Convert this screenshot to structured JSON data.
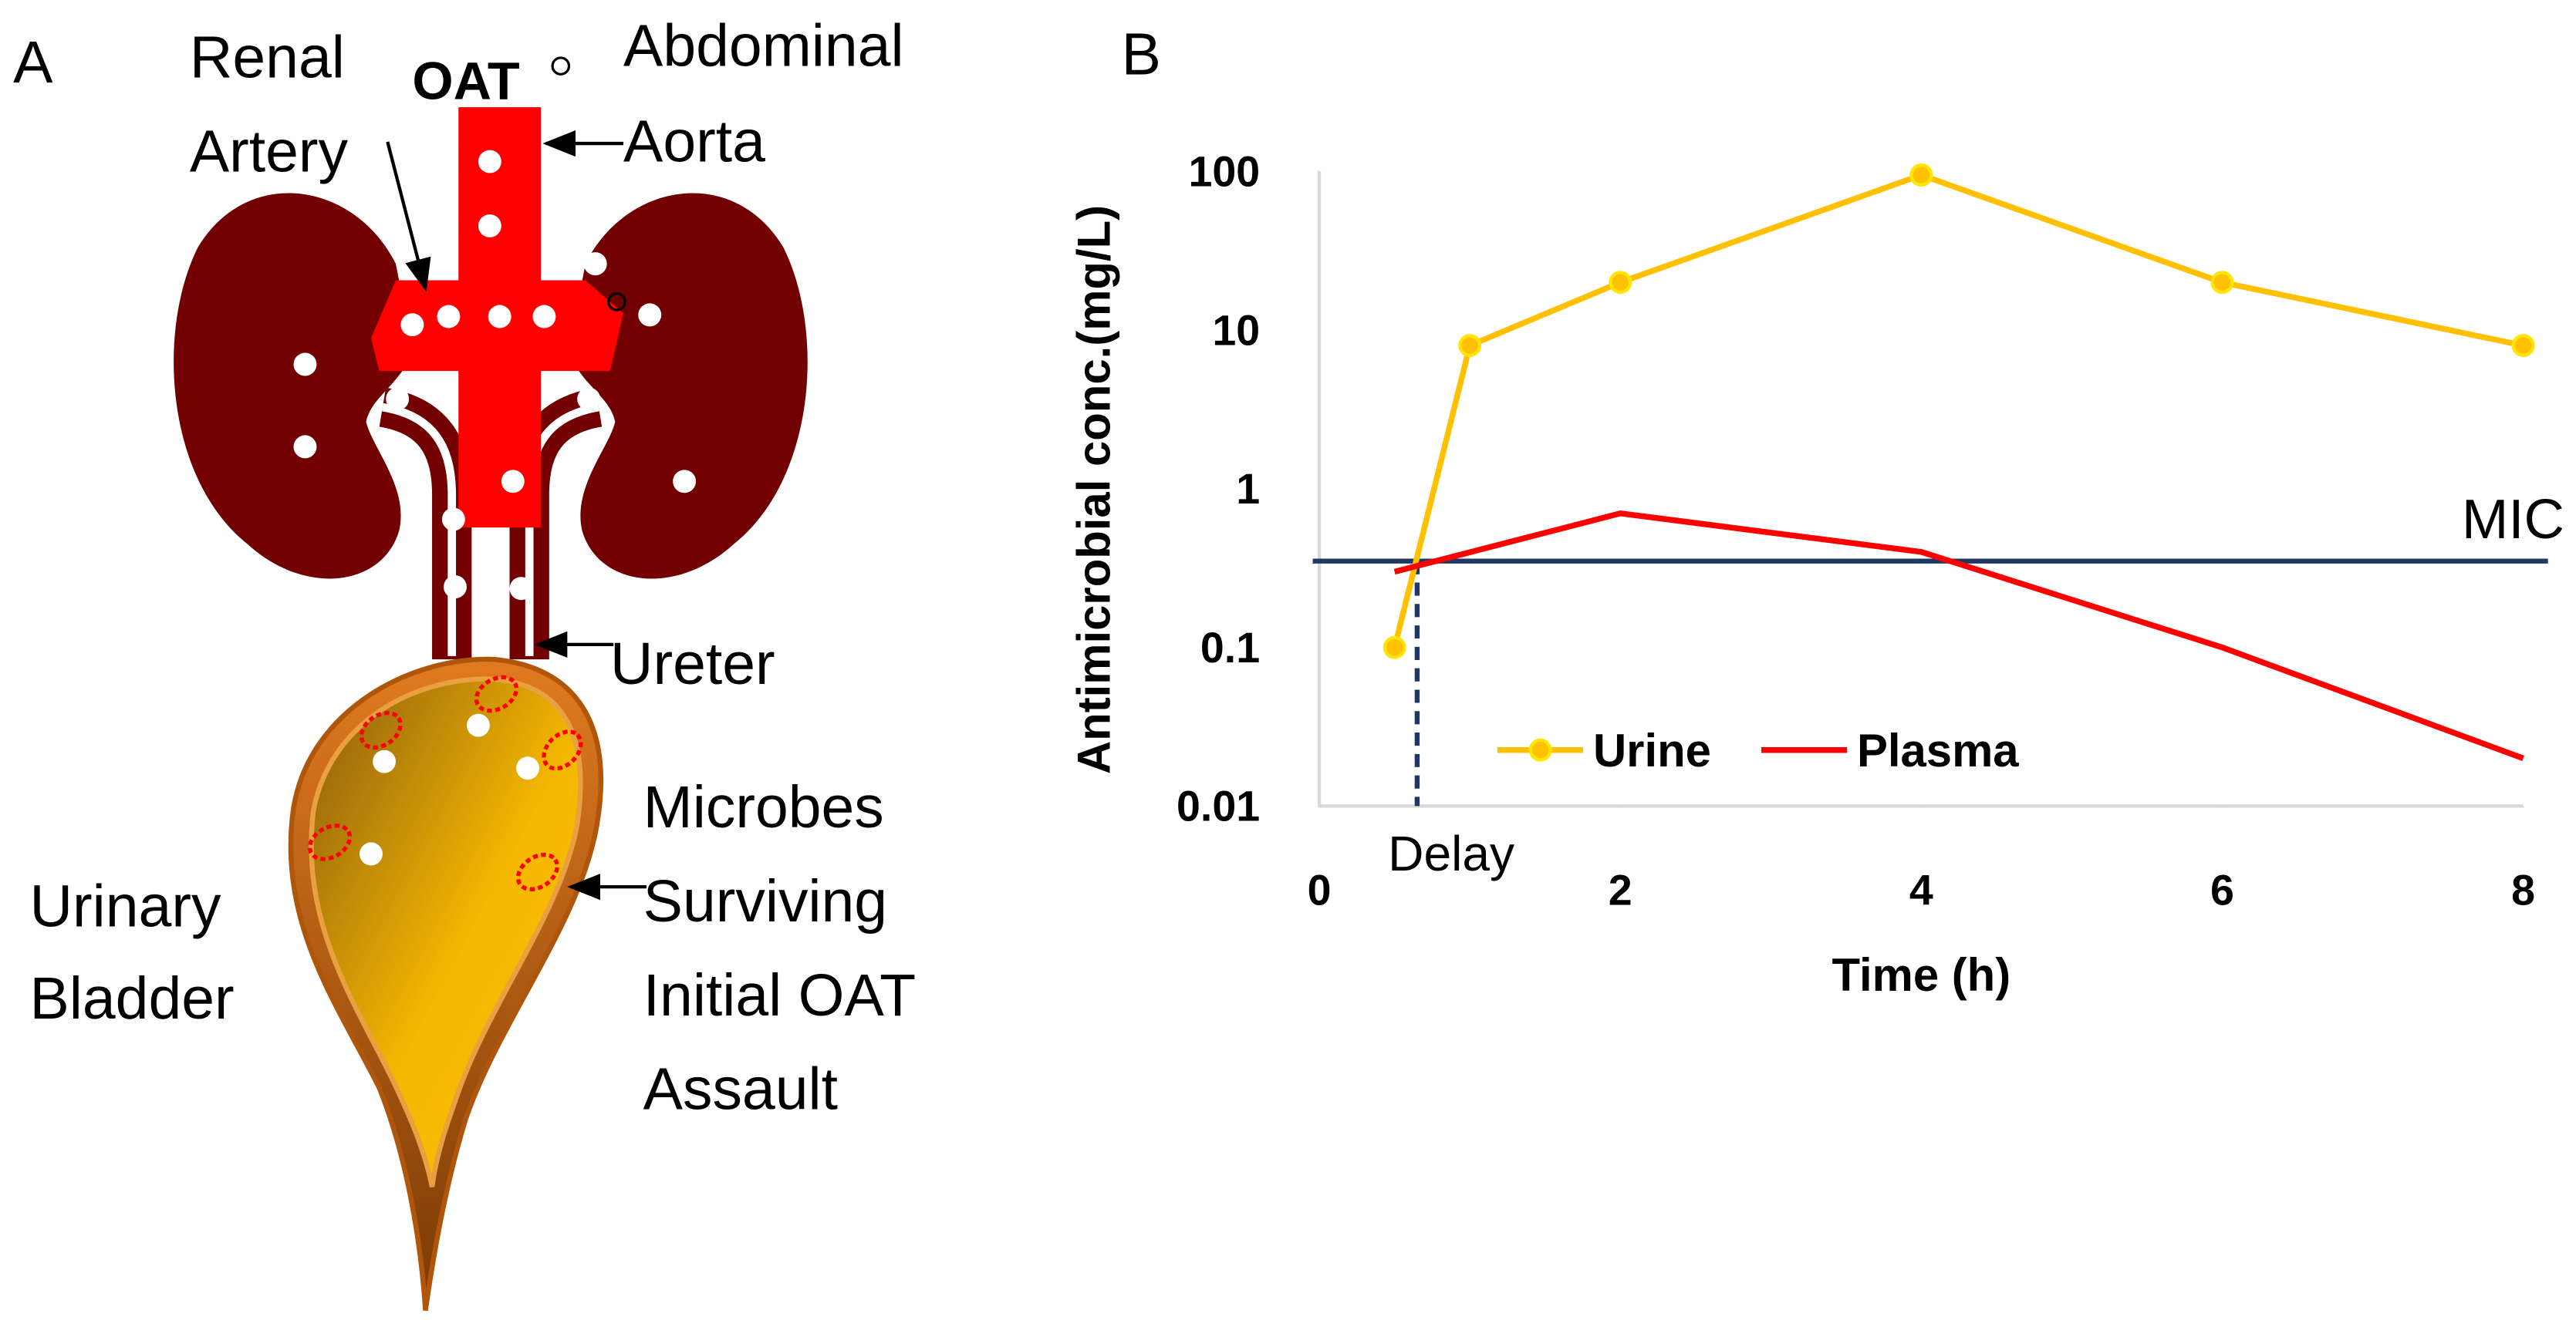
{
  "panel_a": {
    "label": "A",
    "renal_artery": [
      "Renal",
      "Artery"
    ],
    "oat": "OAT",
    "aorta": [
      "Abdominal",
      "Aorta"
    ],
    "ureter": "Ureter",
    "bladder": [
      "Urinary",
      "Bladder"
    ],
    "microbes": [
      "Microbes",
      "Surviving",
      "Initial OAT",
      "Assault"
    ]
  },
  "chart_data": {
    "type": "line",
    "panel_label": "B",
    "xlabel": "Time (h)",
    "ylabel": "Antimicrobial conc.(mg/L)",
    "xlim": [
      0,
      8
    ],
    "xticks": [
      0,
      2,
      4,
      6,
      8
    ],
    "ylim": [
      0.01,
      100
    ],
    "yticks": [
      0.01,
      0.1,
      1,
      10,
      100
    ],
    "log_y": true,
    "legend": "bottom",
    "series": [
      {
        "name": "Urine",
        "color": "#FFC000",
        "x": [
          0.5,
          1,
          2,
          4,
          6,
          8
        ],
        "values": [
          0.1,
          8,
          20,
          95,
          20,
          8
        ]
      },
      {
        "name": "Plasma",
        "color": "#FF0000",
        "x": [
          0.5,
          2,
          4,
          6,
          8
        ],
        "values": [
          0.3,
          0.7,
          0.4,
          0.1,
          0.02
        ]
      }
    ],
    "mic": {
      "value": 0.35,
      "label": "MIC",
      "color": "#1F3864"
    },
    "delay": {
      "value": 0.65,
      "label": "Delay"
    }
  }
}
